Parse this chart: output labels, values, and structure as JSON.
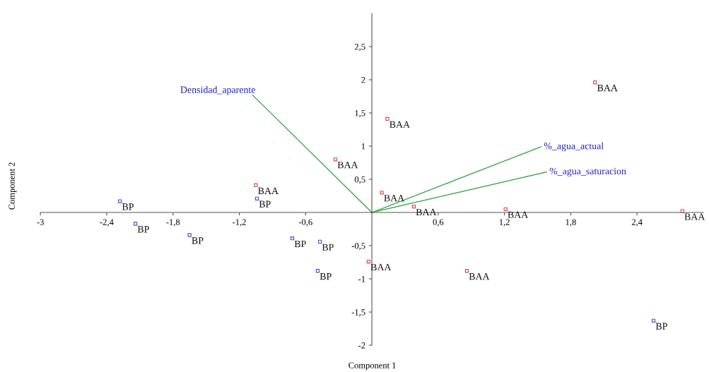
{
  "chart_data": {
    "type": "scatter",
    "xlabel": "Component 1",
    "ylabel": "Component 2",
    "xlim": [
      -3,
      3
    ],
    "ylim": [
      -2,
      3
    ],
    "xticks": [
      {
        "value": -3,
        "label": "-3"
      },
      {
        "value": -2.4,
        "label": "-2,4"
      },
      {
        "value": -1.8,
        "label": "-1,8"
      },
      {
        "value": -1.2,
        "label": "-1,2"
      },
      {
        "value": -0.6,
        "label": "-0,6"
      },
      {
        "value": 0.6,
        "label": "0,6"
      },
      {
        "value": 1.2,
        "label": "1,2"
      },
      {
        "value": 1.8,
        "label": "1,8"
      },
      {
        "value": 2.4,
        "label": "2,4"
      }
    ],
    "yticks": [
      {
        "value": -2,
        "label": "-2"
      },
      {
        "value": -1.5,
        "label": "-1,5"
      },
      {
        "value": -1,
        "label": "-1"
      },
      {
        "value": -0.5,
        "label": "-0,5"
      },
      {
        "value": 0.5,
        "label": "0,5"
      },
      {
        "value": 1,
        "label": "1"
      },
      {
        "value": 1.5,
        "label": "1,5"
      },
      {
        "value": 2,
        "label": "2"
      },
      {
        "value": 2.5,
        "label": "2,5"
      }
    ],
    "grid": false,
    "legend": false,
    "series": [
      {
        "name": "BP",
        "marker": "square",
        "color": "#4a4ad8",
        "x": [
          -2.28,
          -2.14,
          -1.65,
          -1.04,
          -0.72,
          -0.47,
          -0.49,
          2.55
        ],
        "values": [
          0.17,
          -0.17,
          -0.34,
          0.21,
          -0.39,
          -0.44,
          -0.88,
          -1.63
        ]
      },
      {
        "name": "BAA",
        "marker": "square",
        "color": "#e04040",
        "x": [
          2.02,
          0.14,
          -0.33,
          -1.05,
          0.09,
          0.38,
          1.21,
          2.81,
          -0.03,
          0.86
        ],
        "values": [
          1.96,
          1.41,
          0.8,
          0.41,
          0.3,
          0.09,
          0.05,
          0.02,
          -0.74,
          -0.88
        ]
      },
      {
        "name": "Densidad_aparente",
        "type": "line",
        "color": "#3aa84a",
        "x": [
          0,
          -1.08
        ],
        "values": [
          0,
          1.77
        ]
      },
      {
        "name": "%_agua_actual",
        "type": "line",
        "color": "#3aa84a",
        "x": [
          0,
          1.53
        ],
        "values": [
          0,
          0.99
        ]
      },
      {
        "name": "%_agua_saturacion",
        "type": "line",
        "color": "#3aa84a",
        "x": [
          0,
          1.58
        ],
        "values": [
          0,
          0.61
        ]
      }
    ]
  }
}
